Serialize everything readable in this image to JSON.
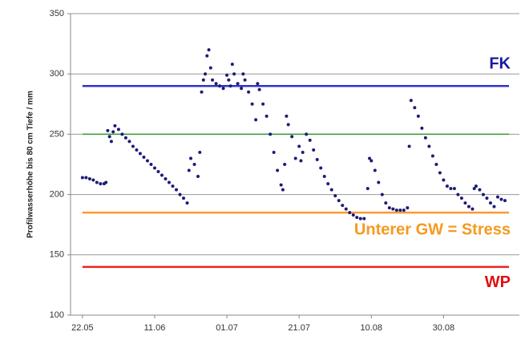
{
  "chart_data": {
    "type": "scatter",
    "y_label": "Profilwasserhöhe bis 80 cm Tiefe / mm",
    "color": "#1c1c78",
    "xlim": [
      -3.3,
      121
    ],
    "ylim": [
      100,
      350
    ],
    "xticks": [
      {
        "value": 0,
        "label": "22.05"
      },
      {
        "value": 20,
        "label": "11.06"
      },
      {
        "value": 40,
        "label": "01.07"
      },
      {
        "value": 60,
        "label": "21.07"
      },
      {
        "value": 80,
        "label": "10.08"
      },
      {
        "value": 100,
        "label": "30.08"
      }
    ],
    "yticks": [
      100,
      150,
      200,
      250,
      300,
      350
    ],
    "grid": true,
    "hlines": [
      {
        "value": 290,
        "color": "#3333cc",
        "label": "FK",
        "label_color": "#1a1aa0"
      },
      {
        "value": 250,
        "color": "#339933"
      },
      {
        "value": 185,
        "color": "#ff9933",
        "label": "Unterer GW = Stress",
        "label_color": "#f59a1e"
      },
      {
        "value": 140,
        "color": "#ee2222",
        "label": "WP",
        "label_color": "#e01010"
      }
    ],
    "x": [
      0,
      1,
      2,
      3,
      4,
      5,
      6,
      6.5,
      7,
      7.5,
      8,
      8.5,
      9,
      10,
      11,
      12,
      13,
      14,
      15,
      16,
      17,
      18,
      19,
      20,
      21,
      22,
      23,
      24,
      25,
      26,
      27,
      28,
      29,
      29.5,
      30,
      31,
      32,
      32.5,
      33,
      33.5,
      34,
      34.5,
      35,
      35.5,
      36,
      37,
      38,
      39,
      40,
      40.5,
      41,
      41.5,
      42,
      43,
      44,
      44.5,
      45,
      46,
      47,
      48,
      48.5,
      49,
      50,
      51,
      52,
      53,
      54,
      55,
      55.5,
      56,
      56.5,
      57,
      58,
      59,
      60,
      60.5,
      61,
      62,
      63,
      64,
      65,
      66,
      67,
      68,
      69,
      70,
      71,
      72,
      73,
      74,
      75,
      76,
      77,
      78,
      79,
      79.5,
      80,
      81,
      82,
      83,
      84,
      85,
      86,
      87,
      88,
      89,
      90,
      90.5,
      91,
      92,
      93,
      94,
      95,
      96,
      97,
      98,
      99,
      100,
      101,
      102,
      103,
      104,
      105,
      106,
      107,
      108,
      108.5,
      109,
      110,
      111,
      112,
      113,
      114,
      115,
      116,
      117
    ],
    "values": [
      214,
      214,
      213,
      212,
      210,
      209,
      209,
      210,
      253,
      248,
      244,
      252,
      257,
      254,
      250,
      247,
      244,
      240,
      237,
      234,
      231,
      228,
      225,
      222,
      219,
      216,
      213,
      210,
      207,
      204,
      200,
      197,
      193,
      220,
      230,
      225,
      215,
      235,
      285,
      295,
      300,
      315,
      320,
      305,
      295,
      292,
      290,
      288,
      299,
      295,
      290,
      308,
      300,
      292,
      288,
      300,
      295,
      285,
      275,
      262,
      292,
      287,
      275,
      265,
      250,
      235,
      220,
      208,
      204,
      225,
      265,
      258,
      248,
      230,
      240,
      228,
      235,
      250,
      245,
      237,
      229,
      222,
      215,
      209,
      204,
      199,
      195,
      191,
      188,
      185,
      183,
      181,
      180,
      180,
      205,
      230,
      228,
      220,
      210,
      200,
      193,
      189,
      188,
      187,
      187,
      187,
      189,
      240,
      278,
      272,
      265,
      255,
      247,
      240,
      232,
      225,
      218,
      212,
      207,
      205,
      205,
      200,
      197,
      193,
      190,
      188,
      205,
      207,
      204,
      200,
      197,
      193,
      190,
      198,
      196,
      195
    ]
  }
}
